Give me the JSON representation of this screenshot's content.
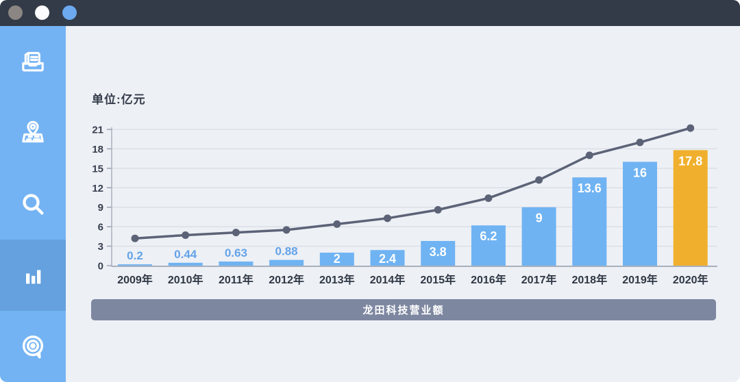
{
  "window": {
    "topbar_color": "#333b48",
    "controls": [
      {
        "name": "window-control-gray",
        "color": "#8b8683"
      },
      {
        "name": "window-control-white",
        "color": "#fcfcfe"
      },
      {
        "name": "window-control-blue",
        "color": "#6ca9ef"
      }
    ]
  },
  "sidebar": {
    "background": "#73b3f3",
    "active_background": "#64a1de",
    "items": [
      {
        "icon": "reading-list-icon",
        "active": false
      },
      {
        "icon": "map-pin-icon",
        "active": false
      },
      {
        "icon": "search-icon",
        "active": false
      },
      {
        "icon": "bar-chart-icon",
        "active": true
      },
      {
        "icon": "target-icon",
        "active": false
      }
    ]
  },
  "chart": {
    "unit_label": "单位:亿元",
    "caption": "龙田科技营业额",
    "caption_background": "#7d87a0"
  },
  "chart_data": {
    "type": "bar",
    "title": "龙田科技营业额",
    "ylabel": "单位:亿元",
    "categories": [
      "2009年",
      "2010年",
      "2011年",
      "2012年",
      "2013年",
      "2014年",
      "2015年",
      "2016年",
      "2017年",
      "2018年",
      "2019年",
      "2020年"
    ],
    "series": [
      {
        "name": "bar_series",
        "type": "bar",
        "values": [
          0.2,
          0.44,
          0.63,
          0.88,
          2,
          2.4,
          3.8,
          6.2,
          9,
          13.6,
          16,
          17.8
        ],
        "color": "#6fb3f3",
        "highlight_index": 11,
        "highlight_color": "#f0b02d"
      },
      {
        "name": "line_series",
        "type": "line",
        "values": [
          4.2,
          4.7,
          5.1,
          5.5,
          6.4,
          7.3,
          8.6,
          10.4,
          13.2,
          17,
          19,
          21.2
        ],
        "color": "#5c6377"
      }
    ],
    "yticks": [
      0,
      3,
      6,
      9,
      12,
      15,
      18,
      21
    ],
    "ylim": [
      0,
      21
    ],
    "grid": true,
    "legend": "none",
    "grid_color": "#d8dce3",
    "axis_color": "#a9b0bd",
    "tick_color": "#9aa2b1",
    "tick_label_color": "#39404f",
    "x_label_color": "#2f3744",
    "outside_value_label_color": "#64a3e8",
    "inside_value_label_color": "#ffffff",
    "inside_label_min_value": 1
  }
}
